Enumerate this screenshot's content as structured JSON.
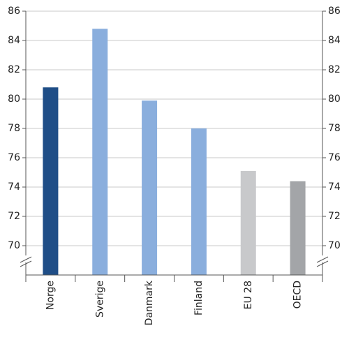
{
  "chart_data": {
    "type": "bar",
    "categories": [
      "Norge",
      "Sverige",
      "Danmark",
      "Finland",
      "EU 28",
      "OECD"
    ],
    "values": [
      80.8,
      84.8,
      79.9,
      78.0,
      75.1,
      74.4
    ],
    "colors": [
      "#1f4e87",
      "#8aaedd",
      "#8aaedd",
      "#8aaedd",
      "#c8c9cb",
      "#a3a5a8"
    ],
    "ylim": [
      68,
      86
    ],
    "yticks": [
      70,
      72,
      74,
      76,
      78,
      80,
      82,
      84,
      86
    ],
    "y2lim": [
      68,
      86
    ],
    "y2ticks": [
      70,
      72,
      74,
      76,
      78,
      80,
      82,
      84,
      86
    ],
    "grid": true
  }
}
